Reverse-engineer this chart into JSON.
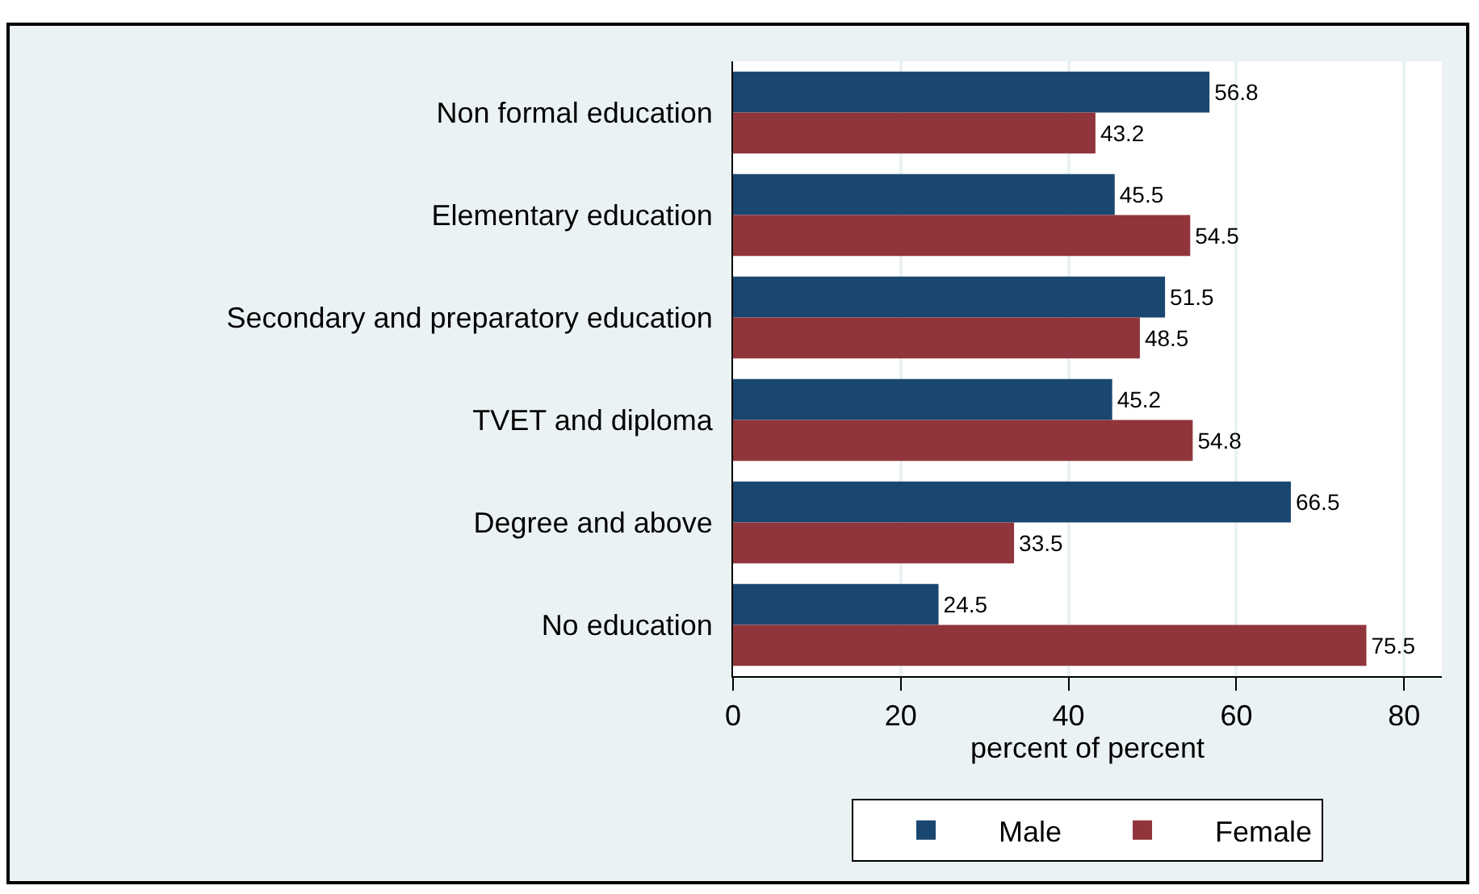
{
  "chart_data": {
    "type": "bar",
    "orientation": "horizontal",
    "xlabel": "percent of percent",
    "categories": [
      "Non formal education",
      "Elementary education",
      "Secondary and preparatory education",
      "TVET and diploma",
      "Degree and above",
      "No education"
    ],
    "series": [
      {
        "name": "Male",
        "color": "#1a476f",
        "values": [
          56.8,
          45.5,
          51.5,
          45.2,
          66.5,
          24.5
        ]
      },
      {
        "name": "Female",
        "color": "#90353b",
        "values": [
          43.2,
          54.5,
          48.5,
          54.8,
          33.5,
          75.5
        ]
      }
    ],
    "xlim": [
      0,
      84.5
    ],
    "xticks": [
      0,
      20,
      40,
      60,
      80
    ],
    "grid": "x",
    "legend": "bottom",
    "data_labels": true
  }
}
